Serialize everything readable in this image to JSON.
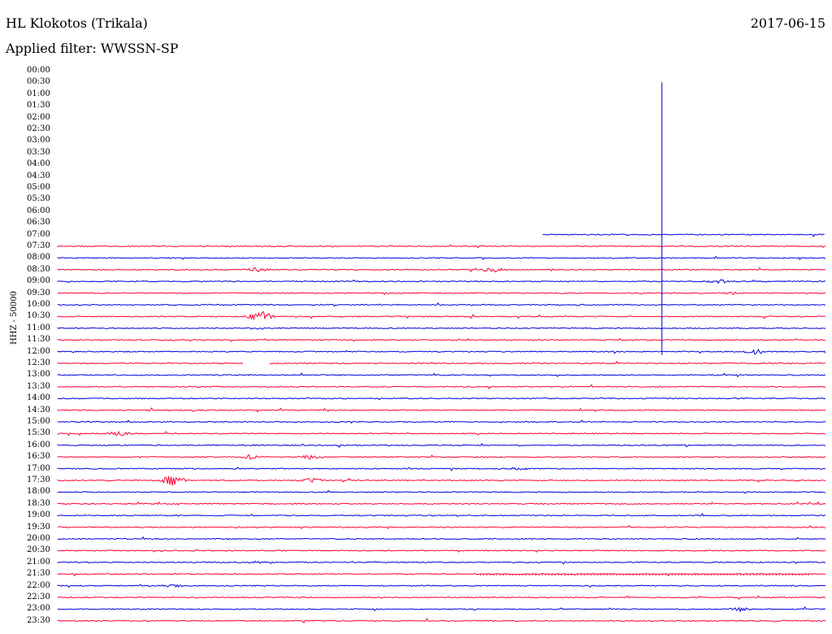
{
  "header": {
    "station": "HL Klokotos (Trikala)",
    "date": "2017-06-15",
    "filter": "Applied filter: WWSSN-SP"
  },
  "axis": {
    "channel_label": "HHZ - 50000",
    "time_labels": [
      "00:00",
      "00:30",
      "01:00",
      "01:30",
      "02:00",
      "02:30",
      "03:00",
      "03:30",
      "04:00",
      "04:30",
      "05:00",
      "05:30",
      "06:00",
      "06:30",
      "07:00",
      "07:30",
      "08:00",
      "08:30",
      "09:00",
      "09:30",
      "10:00",
      "10:30",
      "11:00",
      "11:30",
      "12:00",
      "12:30",
      "13:00",
      "13:30",
      "14:00",
      "14:30",
      "15:00",
      "15:30",
      "16:00",
      "16:30",
      "17:00",
      "17:30",
      "18:00",
      "18:30",
      "19:00",
      "19:30",
      "20:00",
      "20:30",
      "21:00",
      "21:30",
      "22:00",
      "22:30",
      "23:00",
      "23:30"
    ]
  },
  "colors": {
    "blue": "#0000dd",
    "red": "#ff0033"
  },
  "chart_data": {
    "type": "line",
    "title": "HL Klokotos (Trikala)",
    "subtitle": "Applied filter: WWSSN-SP",
    "ylabel": "HHZ - 50000",
    "x_minutes_per_line": 30,
    "record_start": "07:00",
    "trace_rows": [
      {
        "time": "07:00",
        "color": "blue",
        "start": 0.632
      },
      {
        "time": "07:30",
        "color": "red"
      },
      {
        "time": "08:00",
        "color": "blue"
      },
      {
        "time": "08:30",
        "color": "red",
        "bursts": [
          {
            "pos": 0.26,
            "amp": 3
          },
          {
            "pos": 0.57,
            "amp": 3
          }
        ]
      },
      {
        "time": "09:00",
        "color": "blue",
        "bursts": [
          {
            "pos": 0.86,
            "amp": 3
          }
        ]
      },
      {
        "time": "09:30",
        "color": "red",
        "bursts": [
          {
            "pos": 0.88,
            "amp": 2
          }
        ]
      },
      {
        "time": "10:00",
        "color": "blue"
      },
      {
        "time": "10:30",
        "color": "red",
        "bursts": [
          {
            "pos": 0.265,
            "amp": 7
          }
        ]
      },
      {
        "time": "11:00",
        "color": "blue"
      },
      {
        "time": "11:30",
        "color": "red"
      },
      {
        "time": "12:00",
        "color": "blue",
        "bursts": [
          {
            "pos": 0.91,
            "amp": 4
          }
        ]
      },
      {
        "time": "12:30",
        "color": "red",
        "gap": [
          0.242,
          0.276
        ]
      },
      {
        "time": "13:00",
        "color": "blue"
      },
      {
        "time": "13:30",
        "color": "red"
      },
      {
        "time": "14:00",
        "color": "blue"
      },
      {
        "time": "14:30",
        "color": "red"
      },
      {
        "time": "15:00",
        "color": "blue"
      },
      {
        "time": "15:30",
        "color": "red",
        "bursts": [
          {
            "pos": 0.08,
            "amp": 3
          }
        ]
      },
      {
        "time": "16:00",
        "color": "blue"
      },
      {
        "time": "16:30",
        "color": "red",
        "bursts": [
          {
            "pos": 0.25,
            "amp": 3
          },
          {
            "pos": 0.33,
            "amp": 3
          }
        ]
      },
      {
        "time": "17:00",
        "color": "blue",
        "bursts": [
          {
            "pos": 0.6,
            "amp": 2
          }
        ]
      },
      {
        "time": "17:30",
        "color": "red",
        "bursts": [
          {
            "pos": 0.15,
            "amp": 7
          },
          {
            "pos": 0.33,
            "amp": 3
          }
        ]
      },
      {
        "time": "18:00",
        "color": "blue"
      },
      {
        "time": "18:30",
        "color": "red"
      },
      {
        "time": "19:00",
        "color": "blue"
      },
      {
        "time": "19:30",
        "color": "red"
      },
      {
        "time": "20:00",
        "color": "blue"
      },
      {
        "time": "20:30",
        "color": "red"
      },
      {
        "time": "21:00",
        "color": "blue",
        "bursts": [
          {
            "pos": 0.26,
            "amp": 2
          }
        ]
      },
      {
        "time": "21:30",
        "color": "red",
        "dotted": [
          0.55,
          0.98
        ]
      },
      {
        "time": "22:00",
        "color": "blue",
        "bursts": [
          {
            "pos": 0.15,
            "amp": 2
          }
        ]
      },
      {
        "time": "22:30",
        "color": "red"
      },
      {
        "time": "23:00",
        "color": "blue",
        "bursts": [
          {
            "pos": 0.89,
            "amp": 3
          }
        ]
      },
      {
        "time": "23:30",
        "color": "red"
      }
    ],
    "spike": {
      "pos": 0.787,
      "from_time": "00:30",
      "to_time": "12:00",
      "color": "blue"
    }
  }
}
